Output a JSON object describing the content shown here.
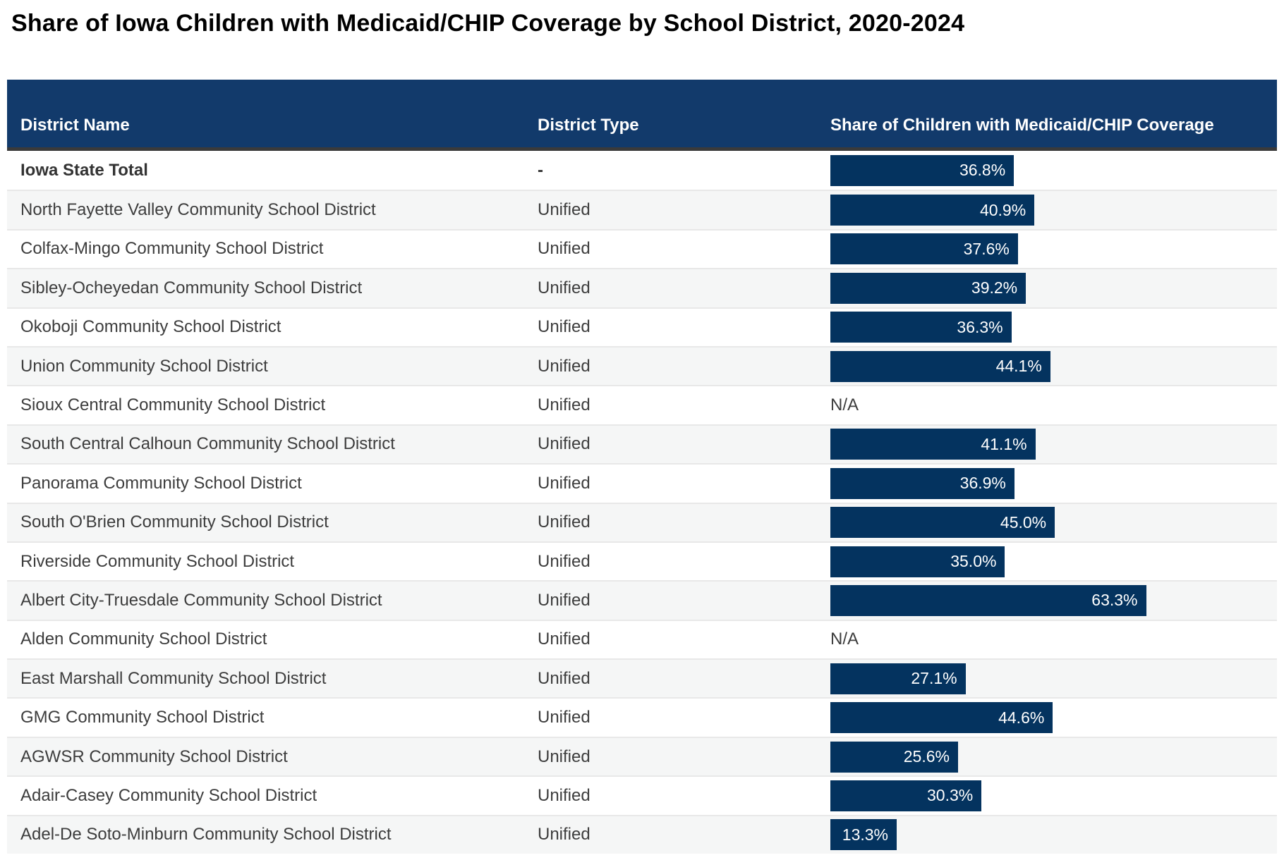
{
  "chart_data": {
    "type": "table",
    "title": "Share of Iowa Children with Medicaid/CHIP Coverage by School District, 2020-2024",
    "columns": [
      "District Name",
      "District Type",
      "Share of Children with Medicaid/CHIP Coverage"
    ],
    "na_label": "N/A",
    "bar_value_unit": "%",
    "bar_scale_note": "bars proportional to coverage percent",
    "rows": [
      {
        "district": "Iowa State Total",
        "district_type": "-",
        "coverage_percent": 36.8,
        "coverage_label": "36.8%",
        "is_total": true
      },
      {
        "district": "North Fayette Valley Community School District",
        "district_type": "Unified",
        "coverage_percent": 40.9,
        "coverage_label": "40.9%",
        "is_total": false
      },
      {
        "district": "Colfax-Mingo Community School District",
        "district_type": "Unified",
        "coverage_percent": 37.6,
        "coverage_label": "37.6%",
        "is_total": false
      },
      {
        "district": "Sibley-Ocheyedan Community School District",
        "district_type": "Unified",
        "coverage_percent": 39.2,
        "coverage_label": "39.2%",
        "is_total": false
      },
      {
        "district": "Okoboji Community School District",
        "district_type": "Unified",
        "coverage_percent": 36.3,
        "coverage_label": "36.3%",
        "is_total": false
      },
      {
        "district": "Union Community School District",
        "district_type": "Unified",
        "coverage_percent": 44.1,
        "coverage_label": "44.1%",
        "is_total": false
      },
      {
        "district": "Sioux Central Community School District",
        "district_type": "Unified",
        "coverage_percent": null,
        "coverage_label": "N/A",
        "is_total": false
      },
      {
        "district": "South Central Calhoun Community School District",
        "district_type": "Unified",
        "coverage_percent": 41.1,
        "coverage_label": "41.1%",
        "is_total": false
      },
      {
        "district": "Panorama Community School District",
        "district_type": "Unified",
        "coverage_percent": 36.9,
        "coverage_label": "36.9%",
        "is_total": false
      },
      {
        "district": "South O'Brien Community School District",
        "district_type": "Unified",
        "coverage_percent": 45.0,
        "coverage_label": "45.0%",
        "is_total": false
      },
      {
        "district": "Riverside Community School District",
        "district_type": "Unified",
        "coverage_percent": 35.0,
        "coverage_label": "35.0%",
        "is_total": false
      },
      {
        "district": "Albert City-Truesdale Community School District",
        "district_type": "Unified",
        "coverage_percent": 63.3,
        "coverage_label": "63.3%",
        "is_total": false
      },
      {
        "district": "Alden Community School District",
        "district_type": "Unified",
        "coverage_percent": null,
        "coverage_label": "N/A",
        "is_total": false
      },
      {
        "district": "East Marshall Community School District",
        "district_type": "Unified",
        "coverage_percent": 27.1,
        "coverage_label": "27.1%",
        "is_total": false
      },
      {
        "district": "GMG Community School District",
        "district_type": "Unified",
        "coverage_percent": 44.6,
        "coverage_label": "44.6%",
        "is_total": false
      },
      {
        "district": "AGWSR Community School District",
        "district_type": "Unified",
        "coverage_percent": 25.6,
        "coverage_label": "25.6%",
        "is_total": false
      },
      {
        "district": "Adair-Casey Community School District",
        "district_type": "Unified",
        "coverage_percent": 30.3,
        "coverage_label": "30.3%",
        "is_total": false
      },
      {
        "district": "Adel-De Soto-Minburn Community School District",
        "district_type": "Unified",
        "coverage_percent": 13.3,
        "coverage_label": "13.3%",
        "is_total": false
      }
    ]
  },
  "colors": {
    "header_bg": "#123a6b",
    "bar": "#04335f",
    "row_alt_bg": "#f5f6f6",
    "separator": "#e8e8e8",
    "rule": "#3a3a3a",
    "text": "#3d3d3d",
    "title_text": "#000000",
    "bar_label_text": "#ffffff"
  }
}
